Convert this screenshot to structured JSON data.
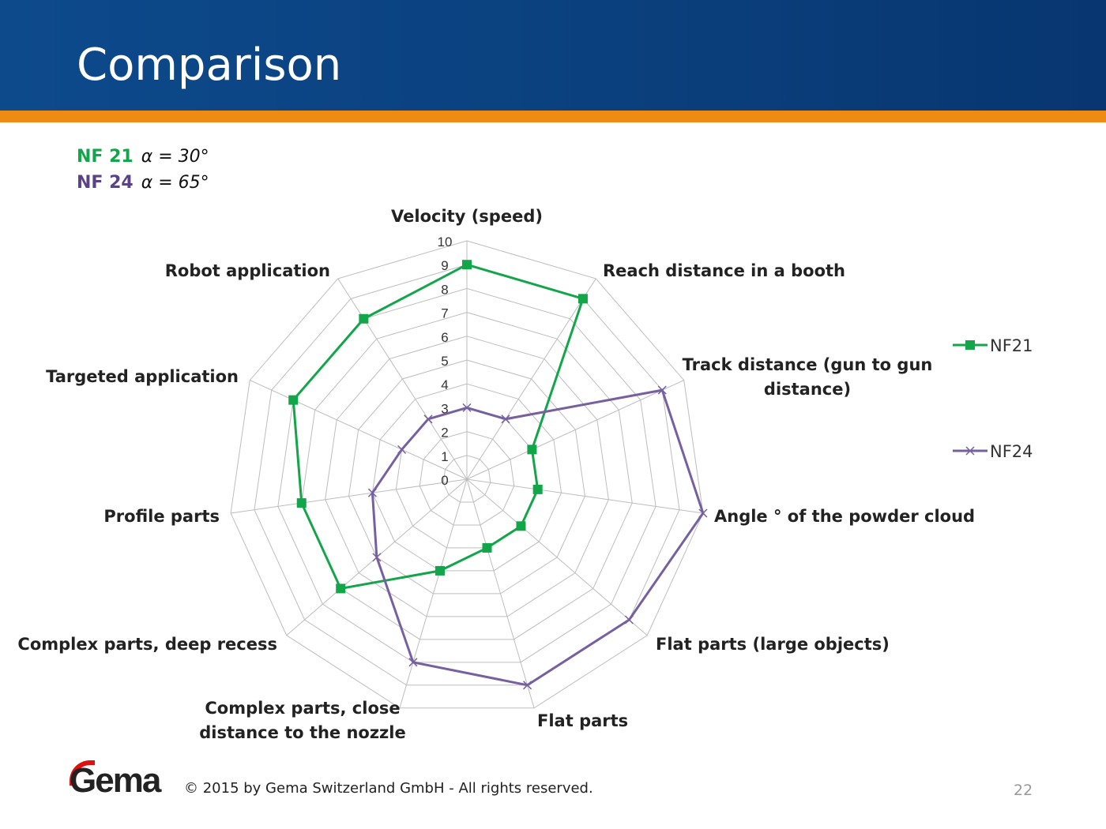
{
  "slide": {
    "title": "Comparison",
    "page_number": "22",
    "copyright": "© 2015 by Gema Switzerland GmbH - All rights reserved.",
    "logo_text": "Gema"
  },
  "notes": [
    {
      "name": "NF 21",
      "formula": "α = 30°",
      "color": "#12a54a"
    },
    {
      "name": "NF 24",
      "formula": "α = 65°",
      "color": "#5b4287"
    }
  ],
  "chart_data": {
    "type": "radar",
    "categories": [
      "Velocity (speed)",
      "Reach distance in a booth",
      "Track distance (gun to gun distance)",
      "Angle ° of the powder cloud",
      "Flat parts (large objects)",
      "Flat parts",
      "Complex parts, close distance to the nozzle",
      "Complex parts, deep recess",
      "Profile parts",
      "Targeted application",
      "Robot application"
    ],
    "category_lines": [
      [
        "Velocity (speed)"
      ],
      [
        "Reach distance in a booth"
      ],
      [
        "Track distance (gun to gun",
        "distance)"
      ],
      [
        "Angle ° of the powder cloud"
      ],
      [
        "Flat parts (large objects)"
      ],
      [
        "Flat parts"
      ],
      [
        "Complex parts, close",
        "distance to the nozzle"
      ],
      [
        "Complex parts, deep recess"
      ],
      [
        "Profile parts"
      ],
      [
        "Targeted application"
      ],
      [
        "Robot application"
      ]
    ],
    "rlim": [
      0,
      10
    ],
    "ticks": [
      "0",
      "1",
      "2",
      "3",
      "4",
      "5",
      "6",
      "7",
      "8",
      "9",
      "10"
    ],
    "grid": true,
    "legend_placement": "right",
    "series": [
      {
        "name": "NF21",
        "color": "#12a54a",
        "marker": "square",
        "values": [
          9,
          9,
          3,
          3,
          3,
          3,
          4,
          7,
          7,
          8,
          8
        ]
      },
      {
        "name": "NF24",
        "color": "#7660a0",
        "marker": "x",
        "values": [
          3,
          3,
          9,
          10,
          9,
          9,
          8,
          5,
          4,
          3,
          3
        ]
      }
    ]
  }
}
